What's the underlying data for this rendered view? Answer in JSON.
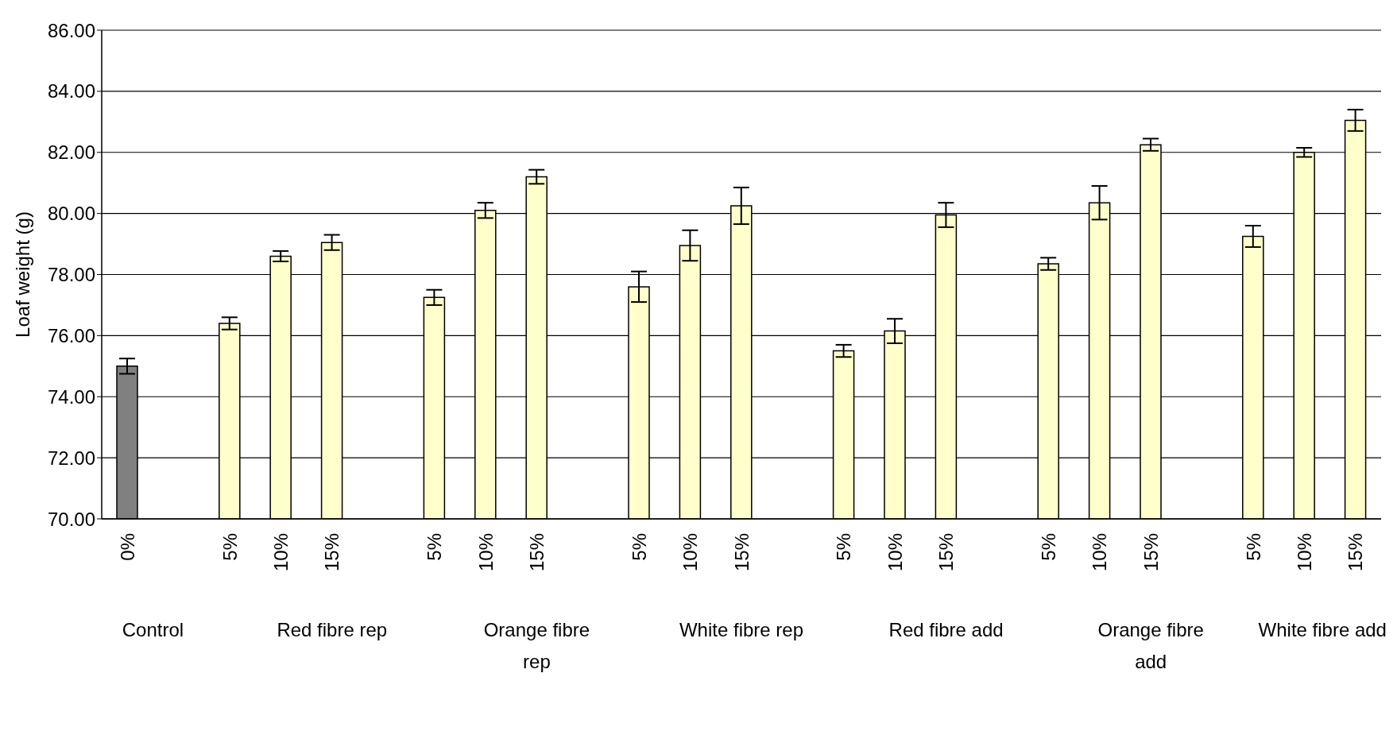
{
  "chart_data": {
    "type": "bar",
    "ylabel": "Loaf weight (g)",
    "categories": [
      "0%",
      null,
      "5%",
      "10%",
      "15%",
      null,
      "5%",
      "10%",
      "15%",
      null,
      "5%",
      "10%",
      "15%",
      null,
      "5%",
      "10%",
      "15%",
      null,
      "5%",
      "10%",
      "15%",
      null,
      "5%",
      "10%",
      "15%"
    ],
    "values": [
      75.0,
      null,
      76.4,
      78.6,
      79.05,
      null,
      77.25,
      80.1,
      81.2,
      null,
      77.6,
      78.95,
      80.25,
      null,
      75.5,
      76.15,
      79.95,
      null,
      78.35,
      80.35,
      82.25,
      null,
      79.25,
      82.0,
      83.05
    ],
    "errors": [
      0.25,
      null,
      0.2,
      0.17,
      0.25,
      null,
      0.25,
      0.25,
      0.23,
      null,
      0.5,
      0.5,
      0.6,
      null,
      0.2,
      0.4,
      0.4,
      null,
      0.2,
      0.55,
      0.2,
      null,
      0.35,
      0.15,
      0.35
    ],
    "colors": [
      "#808080",
      "#ffffcc",
      "#ffffcc",
      "#ffffcc",
      "#ffffcc",
      "#ffffcc",
      "#ffffcc",
      "#ffffcc",
      "#ffffcc",
      "#ffffcc",
      "#ffffcc",
      "#ffffcc",
      "#ffffcc",
      "#ffffcc",
      "#ffffcc",
      "#ffffcc",
      "#ffffcc",
      "#ffffcc",
      "#ffffcc",
      "#ffffcc",
      "#ffffcc",
      "#ffffcc",
      "#ffffcc",
      "#ffffcc",
      "#ffffcc"
    ],
    "ylim": [
      70,
      86
    ],
    "yticks": [
      {
        "value": 70,
        "label": "70.00"
      },
      {
        "value": 72,
        "label": "72.00"
      },
      {
        "value": 74,
        "label": "74.00"
      },
      {
        "value": 76,
        "label": "76.00"
      },
      {
        "value": 78,
        "label": "78.00"
      },
      {
        "value": 80,
        "label": "80.00"
      },
      {
        "value": 82,
        "label": "82.00"
      },
      {
        "value": 84,
        "label": "84.00"
      },
      {
        "value": 86,
        "label": "86.00"
      }
    ],
    "grid": "y",
    "annotations": [
      "Control",
      "Red fibre rep",
      "Orange fibre rep",
      "White fibre rep",
      "Red fibre add",
      "Orange fibre add",
      "White fibre add"
    ]
  }
}
